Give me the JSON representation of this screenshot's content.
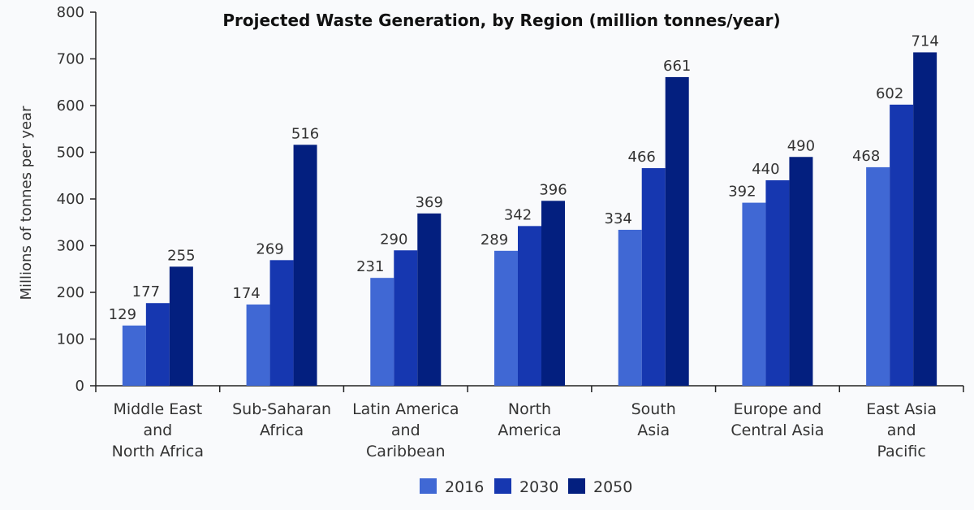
{
  "chart_data": {
    "type": "bar",
    "title": "Projected Waste Generation, by Region (million tonnes/year)",
    "xlabel": "",
    "ylabel": "Millions of tonnes per year",
    "ylim": [
      0,
      800
    ],
    "yticks": [
      0,
      100,
      200,
      300,
      400,
      500,
      600,
      700,
      800
    ],
    "grid": false,
    "legend": "bottom-center",
    "categories": [
      [
        "Middle East",
        "and",
        "North Africa"
      ],
      [
        "Sub-Saharan",
        "Africa"
      ],
      [
        "Latin America",
        "and",
        "Caribbean"
      ],
      [
        "North",
        "America"
      ],
      [
        "South",
        "Asia"
      ],
      [
        "Europe and",
        "Central Asia"
      ],
      [
        "East Asia",
        "and",
        "Pacific"
      ]
    ],
    "series": [
      {
        "name": "2016",
        "color": "#4068d4",
        "values": [
          129,
          174,
          231,
          289,
          334,
          392,
          468
        ]
      },
      {
        "name": "2030",
        "color": "#1637b0",
        "values": [
          177,
          269,
          290,
          342,
          466,
          440,
          602
        ]
      },
      {
        "name": "2050",
        "color": "#031f7f",
        "values": [
          255,
          516,
          369,
          396,
          661,
          490,
          714
        ]
      }
    ]
  }
}
